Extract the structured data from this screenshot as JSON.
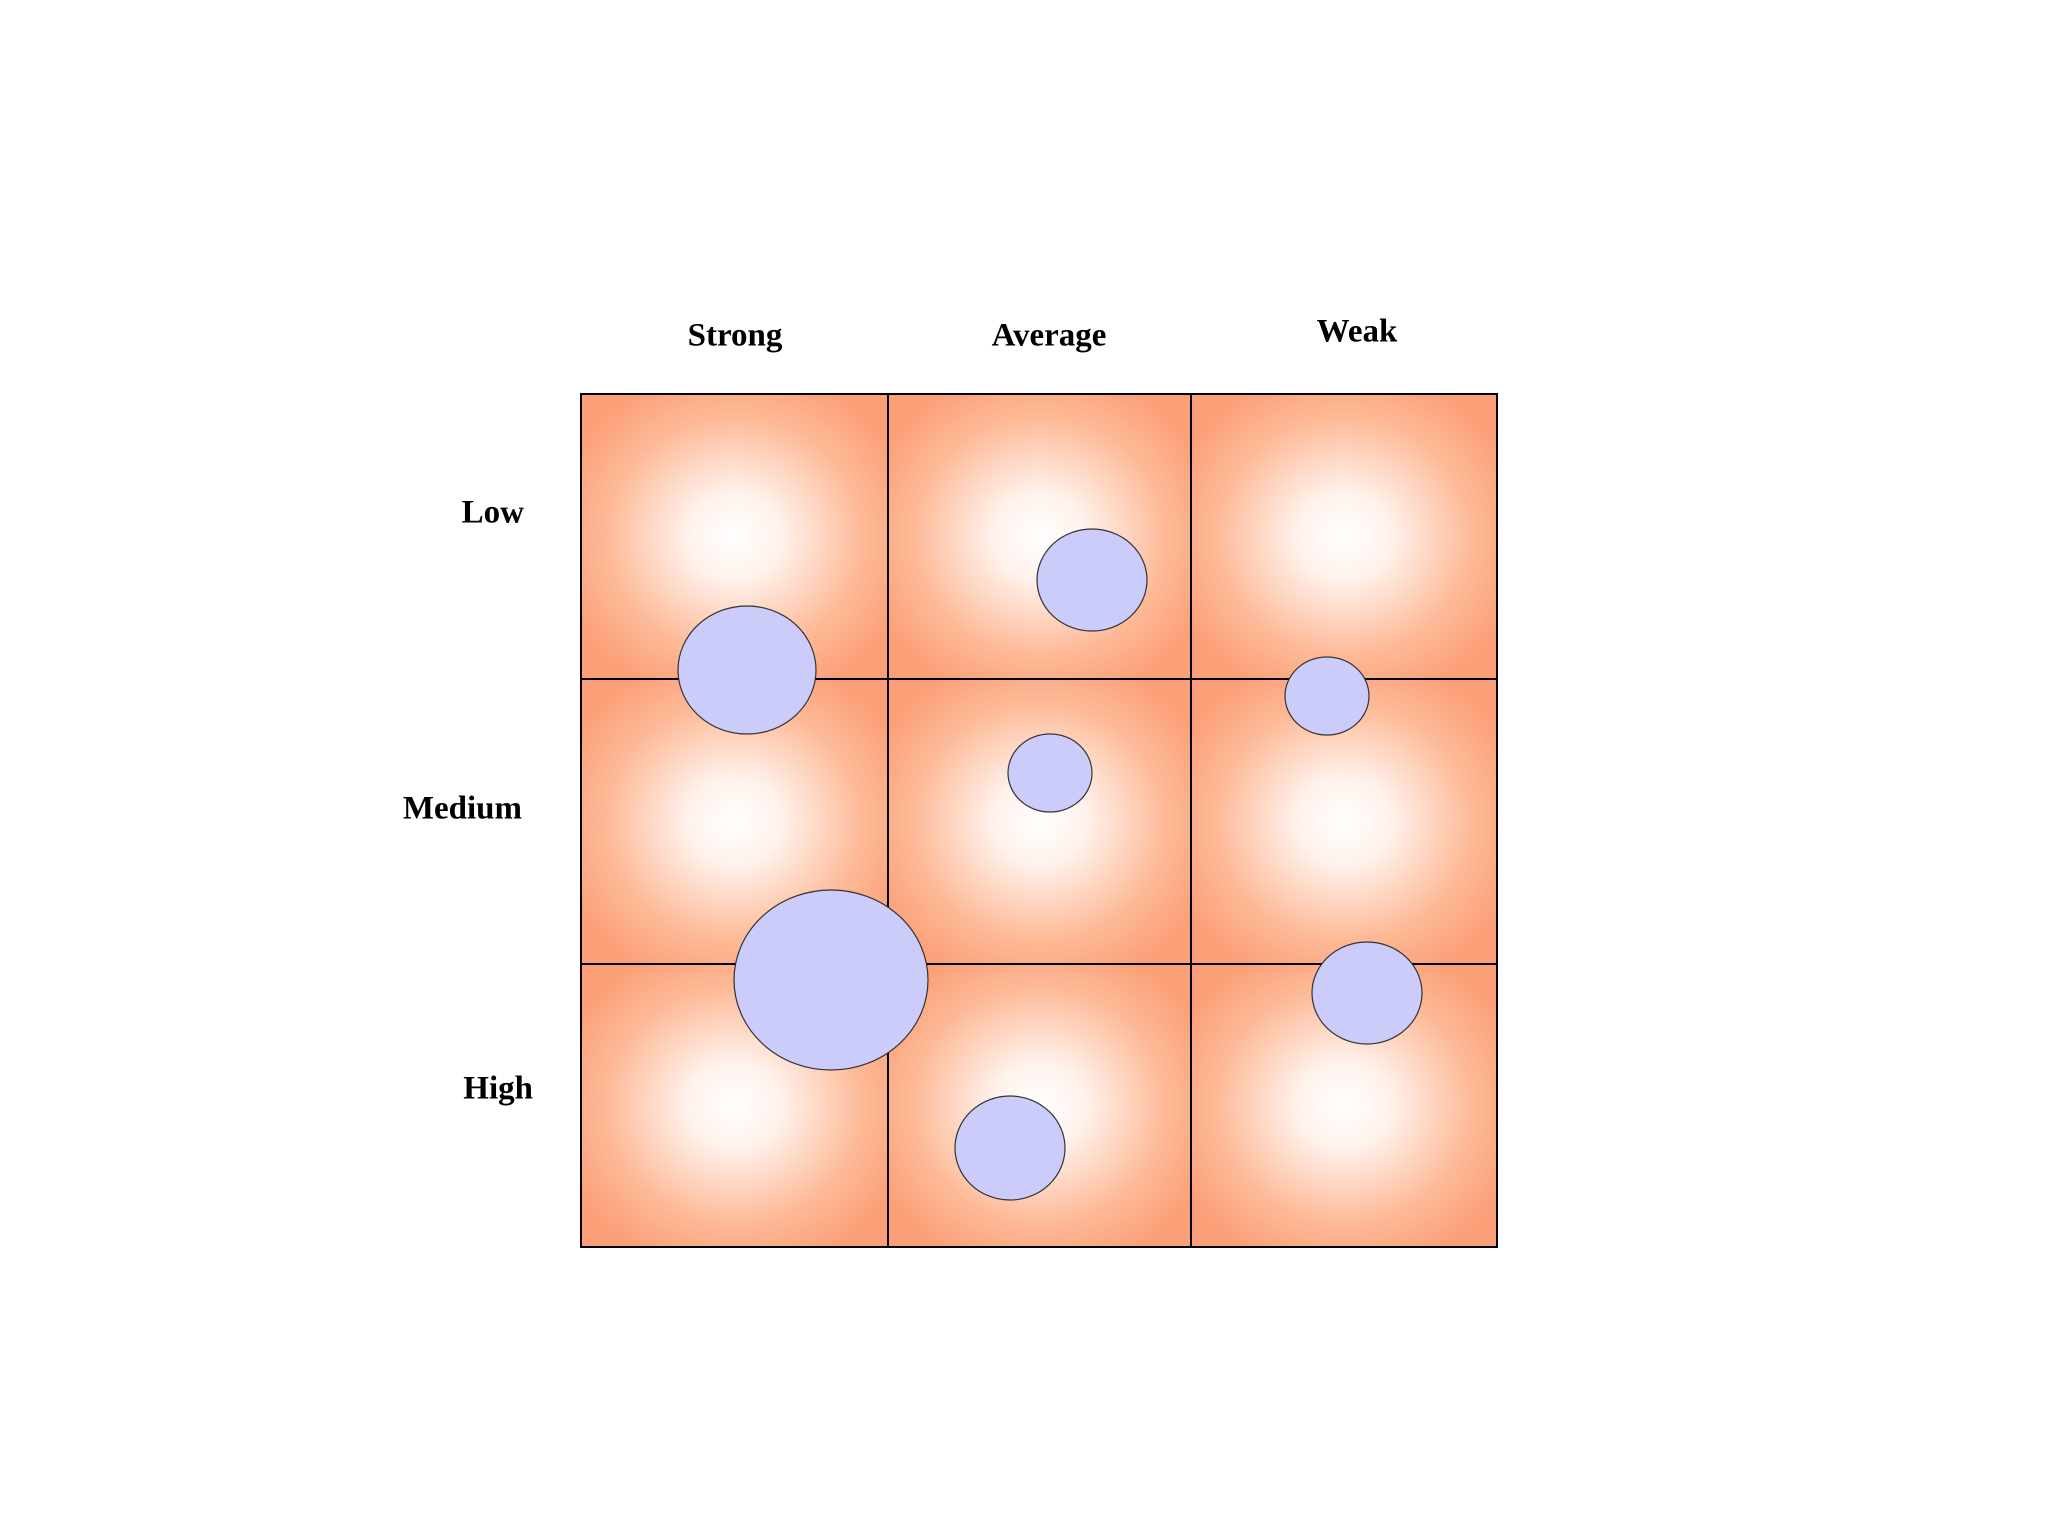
{
  "columns": [
    "Strong",
    "Average",
    "Weak"
  ],
  "rows": [
    "Low",
    "Medium",
    "High"
  ]
}
